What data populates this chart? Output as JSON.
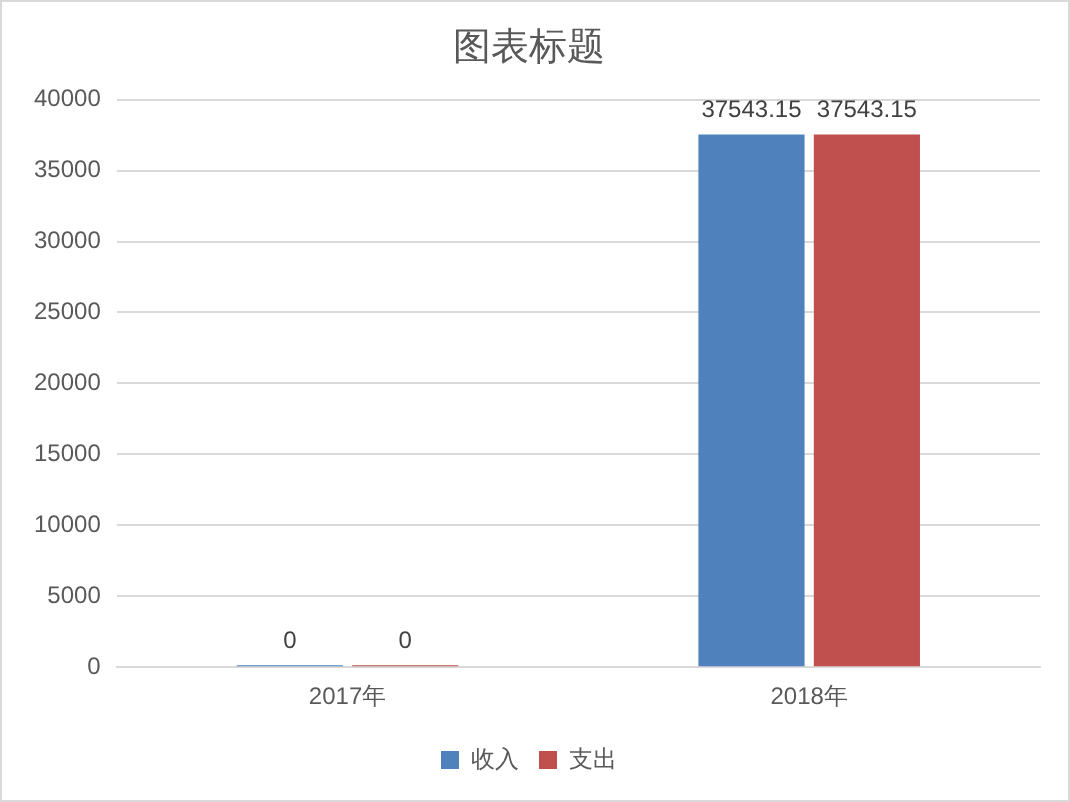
{
  "chart_data": {
    "type": "bar",
    "title": "图表标题",
    "categories": [
      "2017年",
      "2018年"
    ],
    "series": [
      {
        "name": "收入",
        "color": "#4f81bd",
        "values": [
          0,
          37543.15
        ]
      },
      {
        "name": "支出",
        "color": "#c0504d",
        "values": [
          0,
          37543.15
        ]
      }
    ],
    "ylim": [
      0,
      40000
    ],
    "yticks": [
      0,
      5000,
      10000,
      15000,
      20000,
      25000,
      30000,
      35000,
      40000
    ],
    "grid": "y",
    "legend": "bottom",
    "data_labels": true
  }
}
